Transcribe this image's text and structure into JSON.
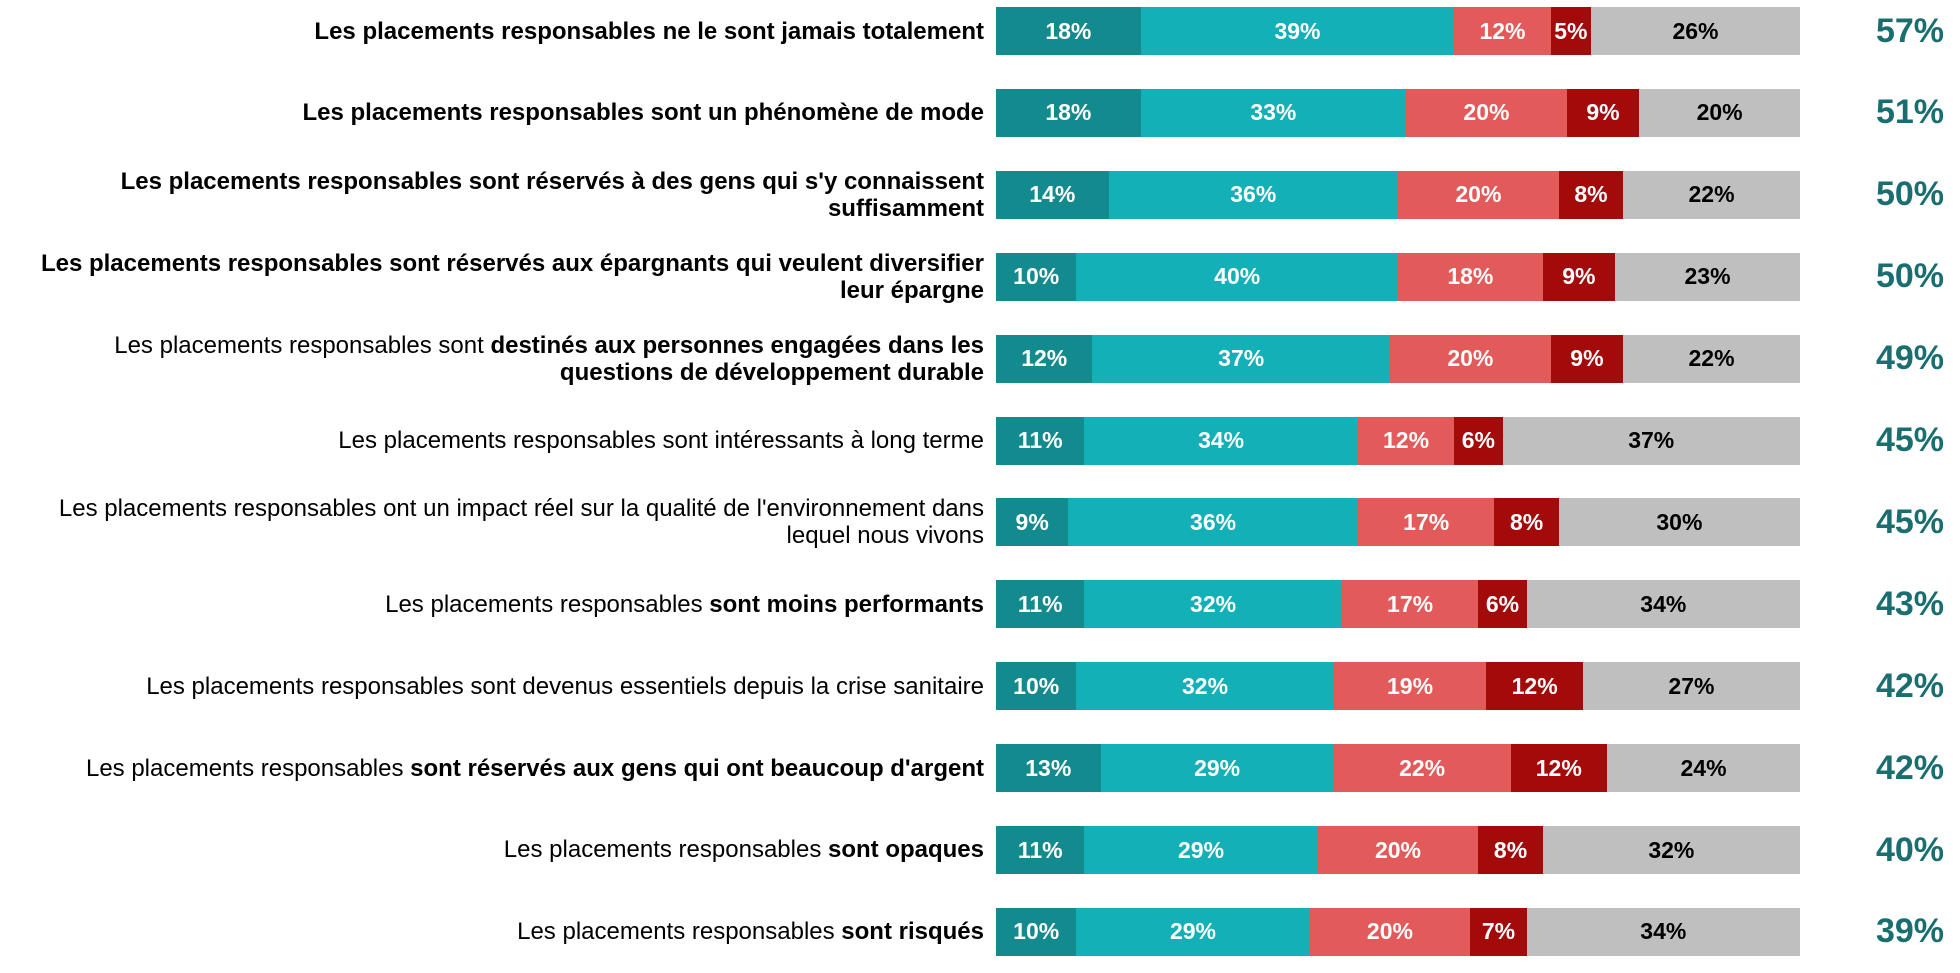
{
  "chart_data": {
    "type": "stacked-bar-horizontal",
    "categories": [
      [
        {
          "text": "Les placements responsables ne le sont jamais totalement",
          "bold": true
        }
      ],
      [
        {
          "text": "Les placements responsables sont un phénomène de mode",
          "bold": true
        }
      ],
      [
        {
          "text": "Les placements responsables sont réservés à des gens qui s'y connaissent suffisamment",
          "bold": true
        }
      ],
      [
        {
          "text": "Les placements responsables sont réservés aux épargnants qui veulent diversifier leur épargne",
          "bold": true
        }
      ],
      [
        {
          "text": "Les placements responsables sont ",
          "bold": false
        },
        {
          "text": "destinés aux personnes engagées dans les questions de développement durable",
          "bold": true
        }
      ],
      [
        {
          "text": "Les placements responsables sont intéressants à long terme",
          "bold": false
        }
      ],
      [
        {
          "text": "Les placements responsables ont un impact réel sur la qualité de l'environnement dans lequel nous vivons",
          "bold": false
        }
      ],
      [
        {
          "text": "Les placements responsables ",
          "bold": false
        },
        {
          "text": "sont moins performants",
          "bold": true
        }
      ],
      [
        {
          "text": "Les placements responsables sont devenus essentiels depuis la crise sanitaire",
          "bold": false
        }
      ],
      [
        {
          "text": "Les placements responsables ",
          "bold": false
        },
        {
          "text": "sont réservés aux gens qui ont beaucoup d'argent",
          "bold": true
        }
      ],
      [
        {
          "text": "Les placements responsables ",
          "bold": false
        },
        {
          "text": "sont opaques",
          "bold": true
        }
      ],
      [
        {
          "text": "Les placements responsables ",
          "bold": false
        },
        {
          "text": "sont risqués",
          "bold": true
        }
      ]
    ],
    "xlim": [
      0,
      100
    ],
    "series": [
      {
        "color": "#138a8e",
        "label_color": "#ffffff",
        "values": [
          18,
          18,
          14,
          10,
          12,
          11,
          9,
          11,
          10,
          13,
          11,
          10
        ],
        "value_labels": [
          "18%",
          "18%",
          "14%",
          "10%",
          "12%",
          "11%",
          "9%",
          "11%",
          "10%",
          "13%",
          "11%",
          "10%"
        ]
      },
      {
        "color": "#14b0b7",
        "label_color": "#ffffff",
        "values": [
          39,
          33,
          36,
          40,
          37,
          34,
          36,
          32,
          32,
          29,
          29,
          29
        ],
        "value_labels": [
          "39%",
          "33%",
          "36%",
          "40%",
          "37%",
          "34%",
          "36%",
          "32%",
          "32%",
          "29%",
          "29%",
          "29%"
        ]
      },
      {
        "color": "#e35a5a",
        "label_color": "#ffffff",
        "values": [
          12,
          20,
          20,
          18,
          20,
          12,
          17,
          17,
          19,
          22,
          20,
          20
        ],
        "value_labels": [
          "12%",
          "20%",
          "20%",
          "18%",
          "20%",
          "12%",
          "17%",
          "17%",
          "19%",
          "22%",
          "20%",
          "20%"
        ]
      },
      {
        "color": "#a30b0b",
        "label_color": "#ffffff",
        "values": [
          5,
          9,
          8,
          9,
          9,
          6,
          8,
          6,
          12,
          12,
          8,
          7
        ],
        "value_labels": [
          "5%",
          "9%",
          "8%",
          "9%",
          "9%",
          "6%",
          "8%",
          "6%",
          "12%",
          "12%",
          "8%",
          "7%"
        ]
      },
      {
        "color": "#bfbfbf",
        "label_color": "#000000",
        "values": [
          26,
          20,
          22,
          23,
          22,
          37,
          30,
          34,
          27,
          24,
          32,
          34
        ],
        "value_labels": [
          "26%",
          "20%",
          "22%",
          "23%",
          "22%",
          "37%",
          "30%",
          "34%",
          "27%",
          "24%",
          "32%",
          "34%"
        ]
      }
    ],
    "totals": {
      "color": "#1a6e70",
      "values": [
        57,
        51,
        50,
        50,
        49,
        45,
        45,
        43,
        42,
        42,
        40,
        39
      ],
      "value_labels": [
        "57%",
        "51%",
        "50%",
        "50%",
        "49%",
        "45%",
        "45%",
        "43%",
        "42%",
        "42%",
        "40%",
        "39%"
      ]
    }
  }
}
